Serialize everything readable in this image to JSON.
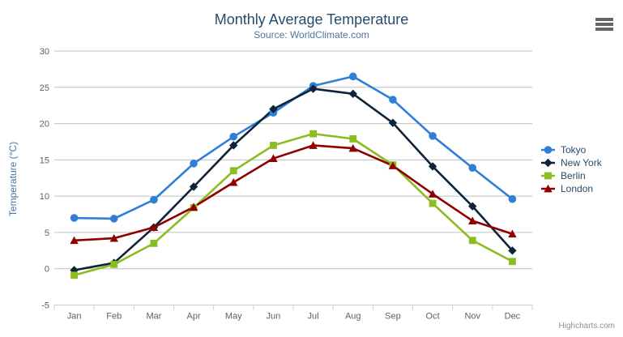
{
  "chart_data": {
    "type": "line",
    "title": "Monthly Average Temperature",
    "subtitle": "Source: WorldClimate.com",
    "xlabel": "",
    "ylabel": "Temperature (°C)",
    "categories": [
      "Jan",
      "Feb",
      "Mar",
      "Apr",
      "May",
      "Jun",
      "Jul",
      "Aug",
      "Sep",
      "Oct",
      "Nov",
      "Dec"
    ],
    "ylim": [
      -5,
      30
    ],
    "yticks": [
      -5,
      0,
      5,
      10,
      15,
      20,
      25,
      30
    ],
    "grid": true,
    "legend_position": "right",
    "series": [
      {
        "name": "Tokyo",
        "marker": "circle",
        "color": "#2f7ed8",
        "values": [
          7.0,
          6.9,
          9.5,
          14.5,
          18.2,
          21.5,
          25.2,
          26.5,
          23.3,
          18.3,
          13.9,
          9.6
        ]
      },
      {
        "name": "New York",
        "marker": "diamond",
        "color": "#0d233a",
        "values": [
          -0.2,
          0.8,
          5.7,
          11.3,
          17.0,
          22.0,
          24.8,
          24.1,
          20.1,
          14.1,
          8.6,
          2.5
        ]
      },
      {
        "name": "Berlin",
        "marker": "square",
        "color": "#8bbc21",
        "values": [
          -0.9,
          0.6,
          3.5,
          8.4,
          13.5,
          17.0,
          18.6,
          17.9,
          14.3,
          9.0,
          3.9,
          1.0
        ]
      },
      {
        "name": "London",
        "marker": "triangle",
        "color": "#910000",
        "values": [
          3.9,
          4.2,
          5.7,
          8.5,
          11.9,
          15.2,
          17.0,
          16.6,
          14.2,
          10.3,
          6.6,
          4.8
        ]
      }
    ],
    "credits": "Highcharts.com",
    "export_menu_icon": "hamburger-icon",
    "colors": {
      "grid_line": "#C0C0C0",
      "axis_line": "#C0D0E0",
      "tick": "#C0D0E0",
      "title_text": "#274b6d",
      "subtitle_text": "#4d759e",
      "axis_label_text": "#606060",
      "axis_title_text": "#4d759e",
      "legend_text": "#274b6d",
      "credits_text": "#909090",
      "menu_icon": "#666666"
    }
  }
}
